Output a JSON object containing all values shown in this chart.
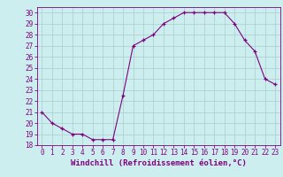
{
  "x": [
    0,
    1,
    2,
    3,
    4,
    5,
    6,
    7,
    8,
    9,
    10,
    11,
    12,
    13,
    14,
    15,
    16,
    17,
    18,
    19,
    20,
    21,
    22,
    23
  ],
  "y": [
    21.0,
    20.0,
    19.5,
    19.0,
    19.0,
    18.5,
    18.5,
    18.5,
    22.5,
    27.0,
    27.5,
    28.0,
    29.0,
    29.5,
    30.0,
    30.0,
    30.0,
    30.0,
    30.0,
    29.0,
    27.5,
    26.5,
    24.0,
    23.5
  ],
  "xlim": [
    -0.5,
    23.5
  ],
  "ylim": [
    18,
    30.5
  ],
  "yticks": [
    18,
    19,
    20,
    21,
    22,
    23,
    24,
    25,
    26,
    27,
    28,
    29,
    30
  ],
  "xticks": [
    0,
    1,
    2,
    3,
    4,
    5,
    6,
    7,
    8,
    9,
    10,
    11,
    12,
    13,
    14,
    15,
    16,
    17,
    18,
    19,
    20,
    21,
    22,
    23
  ],
  "xlabel": "Windchill (Refroidissement éolien,°C)",
  "line_color": "#800080",
  "marker": "+",
  "bg_color": "#cceeee",
  "grid_color": "#aacccc",
  "tick_label_color": "#800080",
  "axis_color": "#800080",
  "label_fontsize": 6.5,
  "tick_fontsize": 5.5
}
